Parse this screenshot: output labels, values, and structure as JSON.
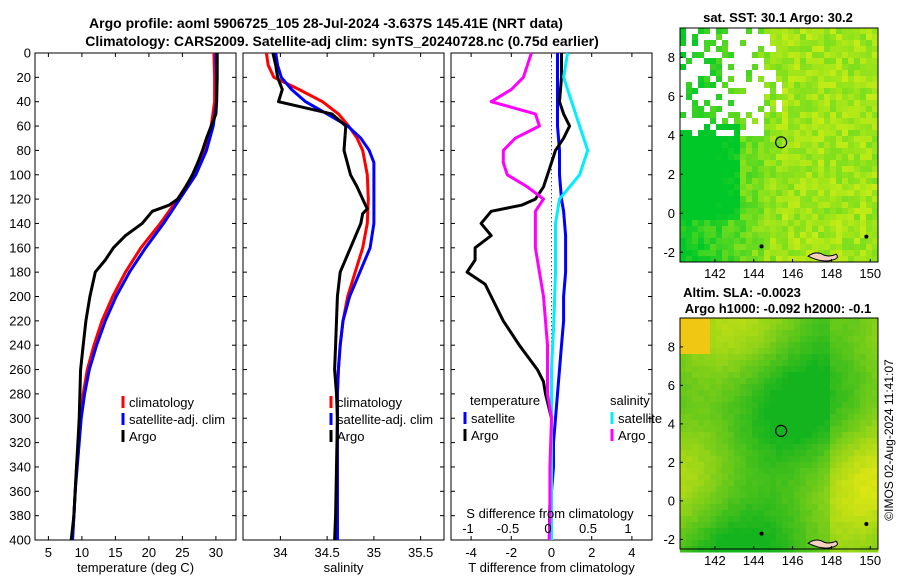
{
  "header": {
    "title_line1": "Argo profile: aoml 5906725_105 28-Jul-2024 -3.637S 145.41E (NRT data)",
    "title_line2": "Climatology: CARS2009. Satellite-adj clim: synTS_20240728.nc (0.75d earlier)"
  },
  "depth_axis": {
    "ticks": [
      0,
      20,
      40,
      60,
      80,
      100,
      120,
      140,
      160,
      180,
      200,
      220,
      240,
      260,
      280,
      300,
      320,
      340,
      360,
      380,
      400
    ],
    "range": [
      0,
      400
    ]
  },
  "chart_data": [
    {
      "type": "line",
      "id": "temperature",
      "xlabel": "temperature (deg C)",
      "xlim": [
        3,
        33
      ],
      "xticks": [
        5,
        10,
        15,
        20,
        25,
        30
      ],
      "series": [
        {
          "name": "climatology",
          "color": "#ff0000",
          "depth": [
            0,
            20,
            40,
            60,
            80,
            100,
            120,
            140,
            160,
            180,
            200,
            220,
            240,
            260,
            280,
            300,
            320,
            340,
            360,
            380,
            400
          ],
          "values": [
            29.7,
            29.8,
            29.8,
            29.3,
            28.3,
            26.6,
            24.3,
            21.7,
            18.8,
            16.5,
            14.6,
            13.0,
            11.8,
            10.8,
            10.2,
            9.8,
            9.5,
            9.2,
            9.0,
            8.8,
            8.6
          ]
        },
        {
          "name": "satellite-adj. clim",
          "color": "#0000ff",
          "depth": [
            0,
            20,
            40,
            60,
            80,
            100,
            120,
            140,
            160,
            180,
            200,
            220,
            240,
            260,
            280,
            300,
            320,
            340,
            360,
            380,
            400
          ],
          "values": [
            30.0,
            30.1,
            30.1,
            29.6,
            28.6,
            27.0,
            24.6,
            22.2,
            19.5,
            17.1,
            15.1,
            13.5,
            12.2,
            11.1,
            10.4,
            9.9,
            9.6,
            9.3,
            9.0,
            8.8,
            8.6
          ]
        },
        {
          "name": "Argo",
          "color": "#000000",
          "depth": [
            0,
            10,
            20,
            40,
            50,
            60,
            70,
            80,
            90,
            100,
            110,
            120,
            125,
            130,
            140,
            150,
            160,
            170,
            180,
            190,
            200,
            220,
            240,
            260,
            280,
            300,
            320,
            340,
            360,
            380,
            400
          ],
          "values": [
            30.2,
            30.2,
            30.2,
            30.1,
            30.0,
            29.3,
            28.6,
            28.0,
            27.3,
            26.5,
            25.5,
            24.3,
            23.0,
            20.5,
            19.0,
            16.5,
            14.7,
            13.5,
            12.0,
            11.6,
            11.2,
            10.6,
            10.2,
            9.8,
            9.7,
            9.6,
            9.4,
            9.2,
            9.0,
            8.8,
            8.4
          ]
        }
      ],
      "legend": [
        "climatology",
        "satellite-adj. clim",
        "Argo"
      ]
    },
    {
      "type": "line",
      "id": "salinity",
      "xlabel": "salinity",
      "xlim": [
        33.6,
        35.75
      ],
      "xticks": [
        34,
        34.5,
        35,
        35.5
      ],
      "series": [
        {
          "name": "climatology",
          "color": "#ff0000",
          "depth": [
            0,
            10,
            20,
            30,
            40,
            50,
            60,
            70,
            80,
            100,
            120,
            140,
            160,
            180,
            200,
            220,
            240,
            260,
            280,
            300,
            340,
            380,
            400
          ],
          "values": [
            33.85,
            33.87,
            33.93,
            34.2,
            34.45,
            34.62,
            34.73,
            34.82,
            34.88,
            34.93,
            34.94,
            34.93,
            34.88,
            34.8,
            34.72,
            34.67,
            34.64,
            34.62,
            34.61,
            34.61,
            34.61,
            34.61,
            34.61
          ]
        },
        {
          "name": "satellite-adj. clim",
          "color": "#0000ff",
          "depth": [
            0,
            10,
            20,
            30,
            40,
            50,
            60,
            70,
            80,
            90,
            100,
            120,
            140,
            160,
            180,
            200,
            220,
            240,
            260,
            280,
            300,
            340,
            380,
            400
          ],
          "values": [
            33.95,
            33.97,
            34.01,
            34.12,
            34.27,
            34.5,
            34.72,
            34.86,
            34.95,
            35.0,
            35.0,
            35.0,
            35.0,
            34.96,
            34.85,
            34.74,
            34.67,
            34.64,
            34.62,
            34.61,
            34.61,
            34.61,
            34.61,
            34.61
          ]
        },
        {
          "name": "Argo",
          "color": "#000000",
          "depth": [
            0,
            10,
            20,
            30,
            40,
            50,
            60,
            80,
            100,
            110,
            120,
            125,
            128,
            132,
            140,
            160,
            180,
            200,
            220,
            240,
            260,
            280,
            300,
            340,
            380,
            400
          ],
          "values": [
            33.92,
            33.95,
            33.97,
            34.02,
            33.98,
            34.55,
            34.7,
            34.68,
            34.75,
            34.82,
            34.88,
            34.91,
            34.93,
            34.88,
            34.86,
            34.75,
            34.64,
            34.61,
            34.6,
            34.59,
            34.58,
            34.6,
            34.61,
            34.6,
            34.59,
            34.58
          ]
        }
      ],
      "legend": [
        "climatology",
        "satellite-adj. clim",
        "Argo"
      ]
    },
    {
      "type": "line",
      "id": "difference",
      "xlabel": "T difference from climatology",
      "top_xlabel": "S difference from climatology",
      "xlim": [
        -5.0,
        5.0
      ],
      "xticks": [
        -4,
        -2,
        0,
        2,
        4
      ],
      "top_xticks": [
        "-1",
        "-0.5",
        "0",
        "0.5",
        "1"
      ],
      "series": [
        {
          "name": "temperature satellite",
          "color": "#0000ff",
          "depth": [
            0,
            20,
            40,
            60,
            80,
            100,
            120,
            130,
            150,
            180,
            200,
            220,
            240,
            260,
            280,
            300,
            320,
            340,
            360,
            380,
            400
          ],
          "values": [
            0.3,
            0.3,
            0.3,
            0.3,
            0.4,
            0.4,
            0.5,
            0.6,
            0.7,
            0.7,
            0.6,
            0.6,
            0.5,
            0.4,
            0.3,
            0.2,
            0.1,
            0.1,
            0.0,
            0.0,
            0.0
          ]
        },
        {
          "name": "temperature Argo",
          "color": "#000000",
          "depth": [
            0,
            20,
            40,
            50,
            60,
            70,
            80,
            100,
            110,
            120,
            125,
            130,
            140,
            150,
            160,
            170,
            180,
            190,
            200,
            220,
            240,
            260,
            270,
            280,
            300,
            340,
            380,
            400
          ],
          "values": [
            0.5,
            0.5,
            0.4,
            0.6,
            0.9,
            0.6,
            0.2,
            -0.2,
            -0.4,
            -0.8,
            -1.5,
            -3.0,
            -3.5,
            -3.0,
            -3.8,
            -3.8,
            -4.2,
            -3.3,
            -3.0,
            -2.4,
            -1.6,
            -0.7,
            -0.4,
            -0.3,
            0.0,
            0.0,
            -0.1,
            -0.1
          ]
        },
        {
          "name": "salinity satellite",
          "color": "#00eeff",
          "depth": [
            0,
            20,
            40,
            60,
            80,
            100,
            120,
            140,
            180,
            220,
            260,
            300,
            340,
            380,
            400
          ],
          "values": [
            0.2,
            0.15,
            0.25,
            0.35,
            0.45,
            0.35,
            0.1,
            0.05,
            0.05,
            0.03,
            0.0,
            0.0,
            0.0,
            0.0,
            0.0
          ]
        },
        {
          "name": "salinity Argo",
          "color": "#ff00ff",
          "depth": [
            0,
            10,
            20,
            30,
            40,
            50,
            60,
            70,
            80,
            90,
            100,
            110,
            120,
            130,
            160,
            200,
            240,
            260,
            280,
            300,
            340,
            380,
            400
          ],
          "values": [
            -0.25,
            -0.3,
            -0.35,
            -0.5,
            -0.75,
            -0.2,
            -0.15,
            -0.45,
            -0.6,
            -0.6,
            -0.55,
            -0.3,
            -0.1,
            -0.2,
            -0.2,
            -0.1,
            -0.05,
            -0.05,
            -0.05,
            0.0,
            -0.02,
            -0.02,
            -0.03
          ]
        }
      ],
      "legend_temperature_title": "temperature",
      "legend_salinity_title": "salinity",
      "legend_temperature": [
        "satellite",
        "Argo"
      ],
      "legend_salinity": [
        "satellite",
        "Argo"
      ]
    },
    {
      "type": "heatmap",
      "id": "sst-map",
      "title": "sat. SST: 30.1 Argo: 30.2",
      "xticks": [
        142,
        144,
        146,
        148,
        150
      ],
      "yticks": [
        -2,
        0,
        2,
        4,
        6,
        8
      ],
      "xlim": [
        140.2,
        150.4
      ],
      "ylim": [
        -2.5,
        9.5
      ],
      "marker": {
        "lon": 145.41,
        "lat": 3.637
      }
    },
    {
      "type": "heatmap",
      "id": "sla-map",
      "title": "Altim. SLA: -0.0023",
      "subtitle": "Argo h1000: -0.092 h2000: -0.1",
      "xticks": [
        142,
        144,
        146,
        148,
        150
      ],
      "yticks": [
        -2,
        0,
        2,
        4,
        6,
        8
      ],
      "xlim": [
        140.2,
        150.4
      ],
      "ylim": [
        -2.5,
        9.5
      ],
      "marker": {
        "lon": 145.41,
        "lat": 3.637
      }
    }
  ],
  "footer": {
    "imos_label": "©IMOS 02-Aug-2024 11:41:07"
  }
}
